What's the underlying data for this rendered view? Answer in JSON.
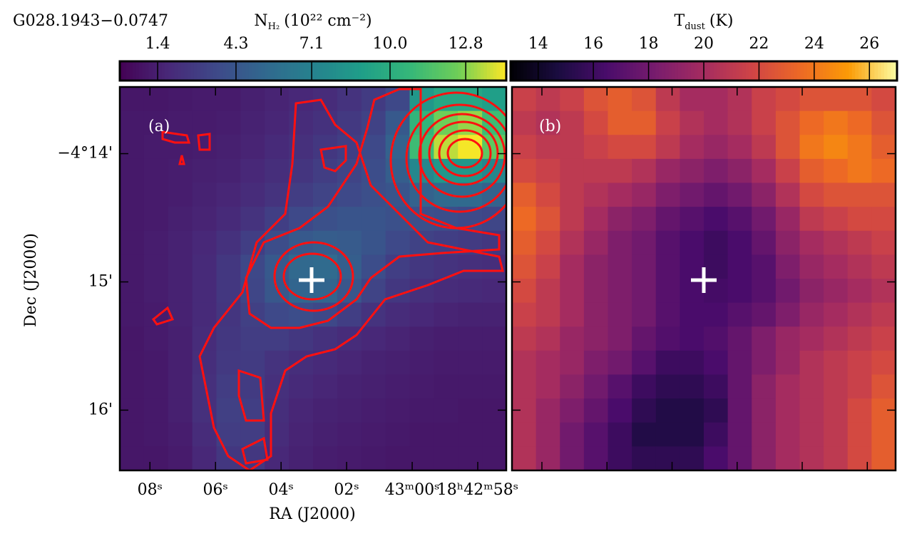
{
  "chart_data": [
    {
      "type": "heatmap",
      "title": "G028.1943−0.0747",
      "panel_label": "(a)",
      "xlabel": "RA (J2000)",
      "ylabel": "Dec (J2000)",
      "colorbar": {
        "label": {
          "symbol": "N",
          "subscript": "H₂",
          "unit": "(10²² cm⁻²)"
        },
        "lim": [
          0.0,
          14.3
        ],
        "ticks": [
          1.4,
          4.3,
          7.1,
          {
            "value": 10,
            "label": "10.0"
          },
          12.8
        ],
        "cmap": "viridis"
      },
      "xlim": [
        8.92,
        -2.87
      ],
      "xticks": [
        {
          "value": 8,
          "label": "08ˢ"
        },
        {
          "value": 6,
          "label": "06ˢ"
        },
        {
          "value": 4,
          "label": "04ˢ"
        },
        {
          "value": 2,
          "label": "02ˢ"
        },
        {
          "value": 0,
          "label": "43ᵐ00ˢ"
        },
        {
          "value": -2,
          "label": "18ʰ42ᵐ58ˢ"
        }
      ],
      "ylim": [
        13.48,
        16.47
      ],
      "yticks": [
        {
          "value": 14,
          "label": "−4°14'"
        },
        {
          "value": 15,
          "label": "15'"
        },
        {
          "value": 16,
          "label": "16'"
        }
      ],
      "contour_color": "#ff1010",
      "values": [
        [
          1.0,
          1.0,
          1.1,
          1.2,
          1.2,
          1.4,
          1.6,
          1.8,
          2.0,
          2.4,
          2.8,
          3.5,
          8.5,
          9.5,
          9.5,
          9.0
        ],
        [
          1.1,
          1.1,
          1.2,
          1.2,
          1.3,
          1.5,
          1.7,
          2.0,
          2.3,
          2.7,
          3.2,
          4.5,
          10.5,
          12.5,
          13.0,
          11.0
        ],
        [
          1.1,
          1.2,
          1.2,
          1.3,
          1.4,
          1.6,
          1.9,
          2.2,
          2.6,
          3.0,
          3.6,
          5.0,
          11.0,
          13.5,
          14.2,
          12.0
        ],
        [
          1.1,
          1.2,
          1.3,
          1.4,
          1.5,
          1.8,
          2.1,
          2.5,
          2.9,
          3.3,
          3.8,
          4.8,
          7.5,
          8.5,
          8.5,
          7.5
        ],
        [
          1.1,
          1.2,
          1.3,
          1.5,
          1.7,
          2.0,
          2.4,
          2.9,
          3.3,
          3.6,
          3.9,
          4.2,
          5.0,
          5.5,
          5.5,
          5.0
        ],
        [
          1.1,
          1.2,
          1.4,
          1.6,
          1.9,
          2.4,
          3.0,
          3.6,
          4.0,
          4.2,
          4.2,
          4.0,
          3.9,
          3.8,
          3.6,
          3.4
        ],
        [
          1.1,
          1.3,
          1.5,
          1.8,
          2.3,
          3.0,
          3.8,
          4.5,
          4.7,
          4.6,
          4.2,
          3.6,
          3.2,
          3.0,
          2.8,
          2.6
        ],
        [
          1.1,
          1.3,
          1.5,
          1.9,
          2.6,
          3.5,
          4.5,
          5.4,
          5.6,
          4.8,
          3.8,
          3.0,
          2.6,
          2.4,
          2.2,
          2.1
        ],
        [
          1.1,
          1.3,
          1.5,
          1.9,
          2.6,
          3.4,
          4.4,
          5.2,
          5.2,
          4.3,
          3.3,
          2.6,
          2.2,
          2.0,
          1.9,
          1.8
        ],
        [
          1.1,
          1.2,
          1.5,
          1.9,
          2.5,
          3.1,
          3.6,
          3.8,
          3.5,
          3.0,
          2.4,
          2.0,
          1.8,
          1.6,
          1.5,
          1.5
        ],
        [
          1.0,
          1.2,
          1.4,
          2.0,
          2.6,
          2.9,
          2.9,
          2.6,
          2.3,
          2.0,
          1.8,
          1.6,
          1.4,
          1.3,
          1.3,
          1.3
        ],
        [
          1.0,
          1.1,
          1.4,
          2.1,
          2.7,
          2.8,
          2.4,
          2.1,
          1.9,
          1.7,
          1.5,
          1.4,
          1.3,
          1.2,
          1.2,
          1.2
        ],
        [
          1.0,
          1.1,
          1.4,
          2.2,
          2.9,
          2.8,
          2.2,
          1.9,
          1.7,
          1.5,
          1.4,
          1.3,
          1.2,
          1.1,
          1.1,
          1.1
        ],
        [
          1.0,
          1.1,
          1.4,
          2.2,
          3.1,
          3.0,
          2.1,
          1.7,
          1.5,
          1.4,
          1.3,
          1.2,
          1.1,
          1.1,
          1.0,
          1.0
        ],
        [
          1.0,
          1.1,
          1.3,
          2.0,
          2.9,
          2.9,
          2.0,
          1.6,
          1.4,
          1.3,
          1.2,
          1.1,
          1.0,
          1.0,
          1.0,
          1.0
        ],
        [
          1.0,
          1.0,
          1.2,
          1.8,
          2.6,
          2.6,
          1.8,
          1.5,
          1.3,
          1.2,
          1.1,
          1.0,
          1.0,
          1.0,
          1.0,
          1.0
        ]
      ]
    },
    {
      "type": "heatmap",
      "panel_label": "(b)",
      "colorbar": {
        "label": {
          "symbol": "T",
          "subscript": "dust",
          "unit": "(K)"
        },
        "lim": [
          13,
          27
        ],
        "ticks": [
          14,
          16,
          18,
          20,
          22,
          24,
          26
        ],
        "cmap": "inferno"
      },
      "values": [
        [
          21.5,
          21.0,
          21.5,
          22.5,
          23.0,
          22.5,
          21.0,
          20.0,
          20.0,
          20.5,
          21.5,
          22.0,
          22.5,
          22.5,
          22.5,
          22.0
        ],
        [
          21.0,
          20.5,
          21.0,
          22.0,
          23.0,
          23.0,
          21.5,
          20.5,
          20.0,
          20.5,
          21.5,
          22.5,
          23.5,
          24.0,
          23.5,
          22.5
        ],
        [
          21.5,
          21.0,
          21.0,
          21.5,
          22.0,
          22.0,
          21.0,
          20.0,
          19.5,
          20.0,
          21.0,
          22.5,
          24.0,
          24.5,
          24.0,
          23.0
        ],
        [
          22.0,
          21.5,
          21.0,
          21.0,
          21.0,
          20.5,
          19.5,
          19.0,
          18.5,
          19.0,
          20.0,
          21.5,
          23.0,
          23.5,
          24.0,
          23.5
        ],
        [
          23.0,
          22.0,
          21.0,
          20.5,
          20.0,
          19.5,
          18.5,
          18.0,
          17.5,
          18.0,
          19.0,
          20.5,
          22.0,
          22.5,
          22.5,
          22.5
        ],
        [
          23.5,
          22.5,
          21.0,
          20.0,
          19.0,
          18.5,
          17.5,
          17.0,
          16.5,
          17.0,
          18.0,
          19.5,
          21.0,
          21.5,
          22.0,
          22.0
        ],
        [
          23.0,
          22.0,
          20.5,
          19.5,
          18.5,
          18.0,
          17.0,
          16.5,
          16.0,
          16.5,
          17.5,
          19.0,
          20.0,
          20.5,
          21.0,
          21.5
        ],
        [
          22.5,
          21.5,
          20.0,
          19.0,
          18.5,
          18.0,
          17.0,
          16.5,
          16.0,
          16.5,
          17.0,
          18.5,
          19.5,
          20.0,
          20.5,
          21.0
        ],
        [
          22.0,
          21.0,
          20.0,
          19.0,
          18.5,
          18.0,
          17.0,
          16.5,
          16.3,
          16.5,
          17.0,
          18.0,
          19.0,
          19.5,
          20.0,
          20.5
        ],
        [
          21.5,
          21.0,
          20.0,
          19.0,
          18.5,
          18.0,
          17.0,
          16.5,
          16.5,
          17.0,
          17.5,
          18.5,
          19.5,
          20.0,
          20.5,
          21.0
        ],
        [
          21.0,
          20.5,
          19.5,
          19.0,
          18.5,
          17.5,
          16.8,
          16.5,
          16.8,
          17.5,
          18.5,
          19.5,
          20.0,
          20.5,
          21.0,
          21.5
        ],
        [
          20.5,
          20.0,
          19.5,
          18.5,
          18.0,
          17.0,
          16.0,
          16.0,
          16.5,
          17.5,
          18.5,
          19.5,
          20.5,
          21.0,
          21.5,
          22.0
        ],
        [
          20.5,
          20.0,
          19.0,
          18.0,
          17.0,
          16.0,
          15.5,
          15.5,
          16.0,
          17.5,
          19.0,
          20.0,
          20.5,
          21.0,
          21.5,
          22.5
        ],
        [
          20.5,
          19.5,
          18.5,
          17.5,
          16.5,
          15.5,
          15.0,
          15.0,
          15.5,
          17.5,
          19.0,
          20.0,
          20.5,
          21.0,
          22.0,
          23.0
        ],
        [
          20.5,
          19.5,
          18.0,
          17.0,
          16.0,
          15.0,
          15.0,
          15.0,
          16.0,
          17.5,
          19.0,
          20.0,
          20.5,
          21.0,
          22.0,
          23.0
        ],
        [
          20.5,
          19.5,
          18.0,
          17.0,
          16.0,
          15.5,
          15.5,
          15.5,
          16.5,
          17.5,
          19.0,
          20.0,
          20.5,
          21.0,
          22.0,
          23.0
        ]
      ]
    }
  ]
}
